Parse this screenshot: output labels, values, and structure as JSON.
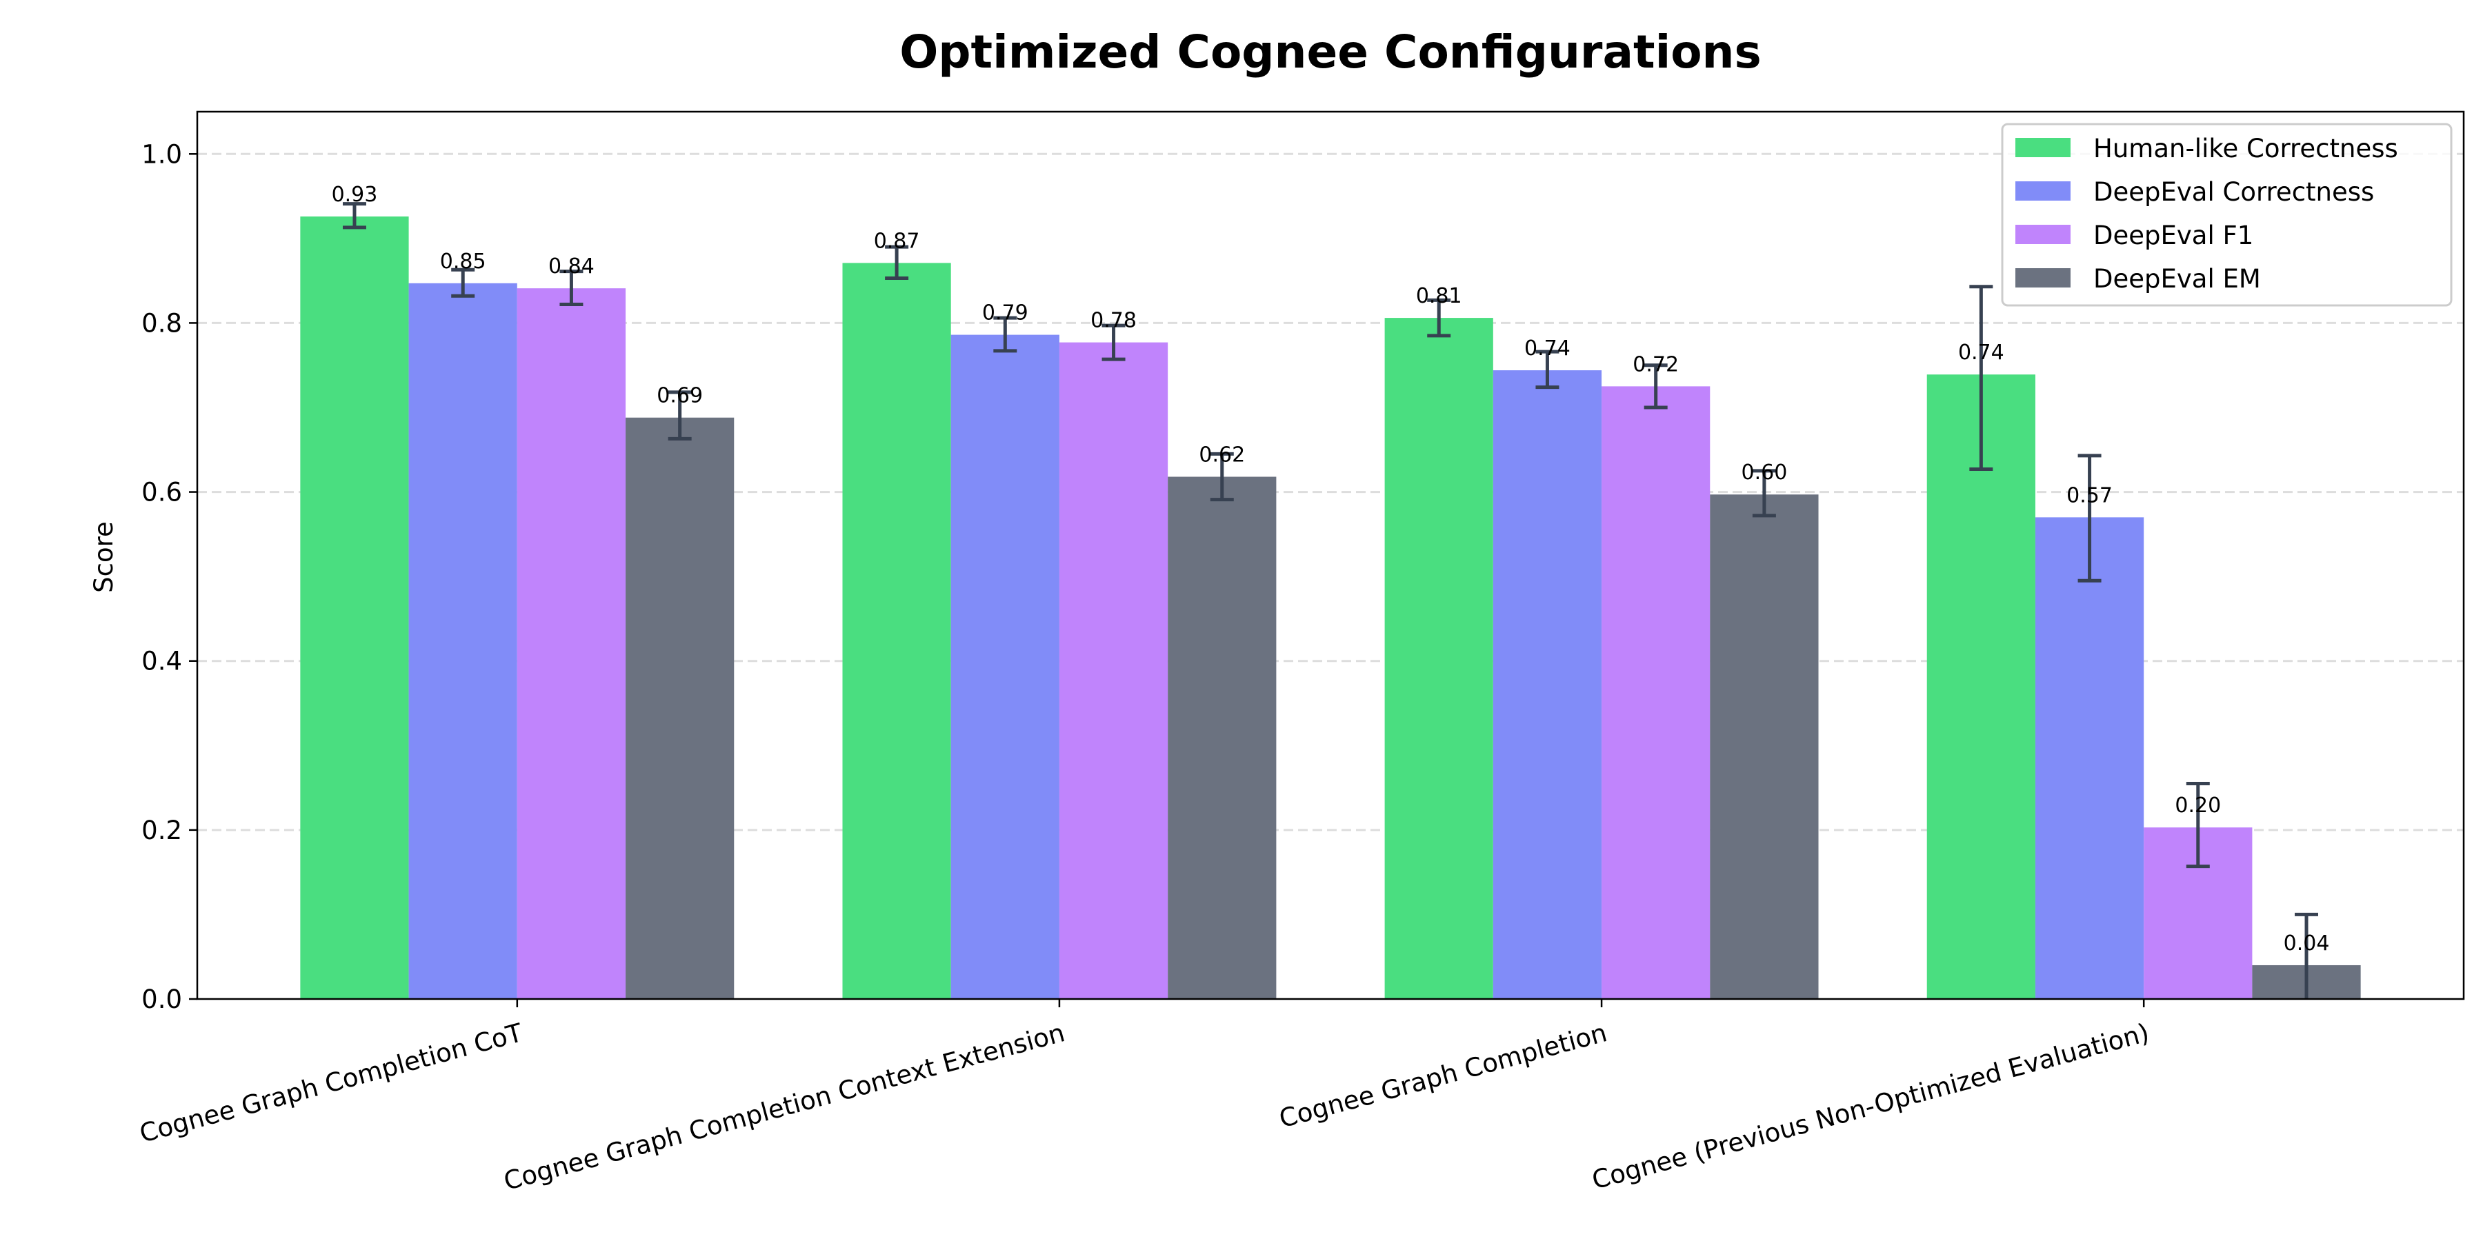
{
  "chart_data": {
    "type": "bar",
    "title": "Optimized Cognee Configurations",
    "xlabel": "",
    "ylabel": "Score",
    "ylim": [
      0,
      1.05
    ],
    "yticks": [
      "0.0",
      "0.2",
      "0.4",
      "0.6",
      "0.8",
      "1.0"
    ],
    "grid": "y, dashed",
    "legend_placement": "top-right",
    "categories": [
      "Cognee Graph Completion CoT",
      "Cognee Graph Completion Context Extension",
      "Cognee Graph Completion",
      "Cognee (Previous Non-Optimized Evaluation)"
    ],
    "series": [
      {
        "name": "Human-like Correctness",
        "color": "#4ade80",
        "values": [
          0.926,
          0.871,
          0.806,
          0.739
        ],
        "labels": [
          "0.93",
          "0.87",
          "0.81",
          "0.74"
        ],
        "err_low": [
          0.913,
          0.853,
          0.785,
          0.627
        ],
        "err_high": [
          0.941,
          0.89,
          0.827,
          0.843
        ]
      },
      {
        "name": "DeepEval Correctness",
        "color": "#818cf8",
        "values": [
          0.847,
          0.786,
          0.744,
          0.57
        ],
        "labels": [
          "0.85",
          "0.79",
          "0.74",
          "0.57"
        ],
        "err_low": [
          0.832,
          0.767,
          0.724,
          0.495
        ],
        "err_high": [
          0.863,
          0.806,
          0.766,
          0.643
        ]
      },
      {
        "name": "DeepEval F1",
        "color": "#c084fc",
        "values": [
          0.841,
          0.777,
          0.725,
          0.203
        ],
        "labels": [
          "0.84",
          "0.78",
          "0.72",
          "0.20"
        ],
        "err_low": [
          0.822,
          0.757,
          0.7,
          0.157
        ],
        "err_high": [
          0.861,
          0.797,
          0.75,
          0.255
        ]
      },
      {
        "name": "DeepEval EM",
        "color": "#6b7280",
        "values": [
          0.688,
          0.618,
          0.597,
          0.04
        ],
        "labels": [
          "0.69",
          "0.62",
          "0.60",
          "0.04"
        ],
        "err_low": [
          0.663,
          0.591,
          0.572,
          -0.02
        ],
        "err_high": [
          0.718,
          0.645,
          0.625,
          0.1
        ]
      }
    ],
    "errorbar_color": "#374151"
  }
}
